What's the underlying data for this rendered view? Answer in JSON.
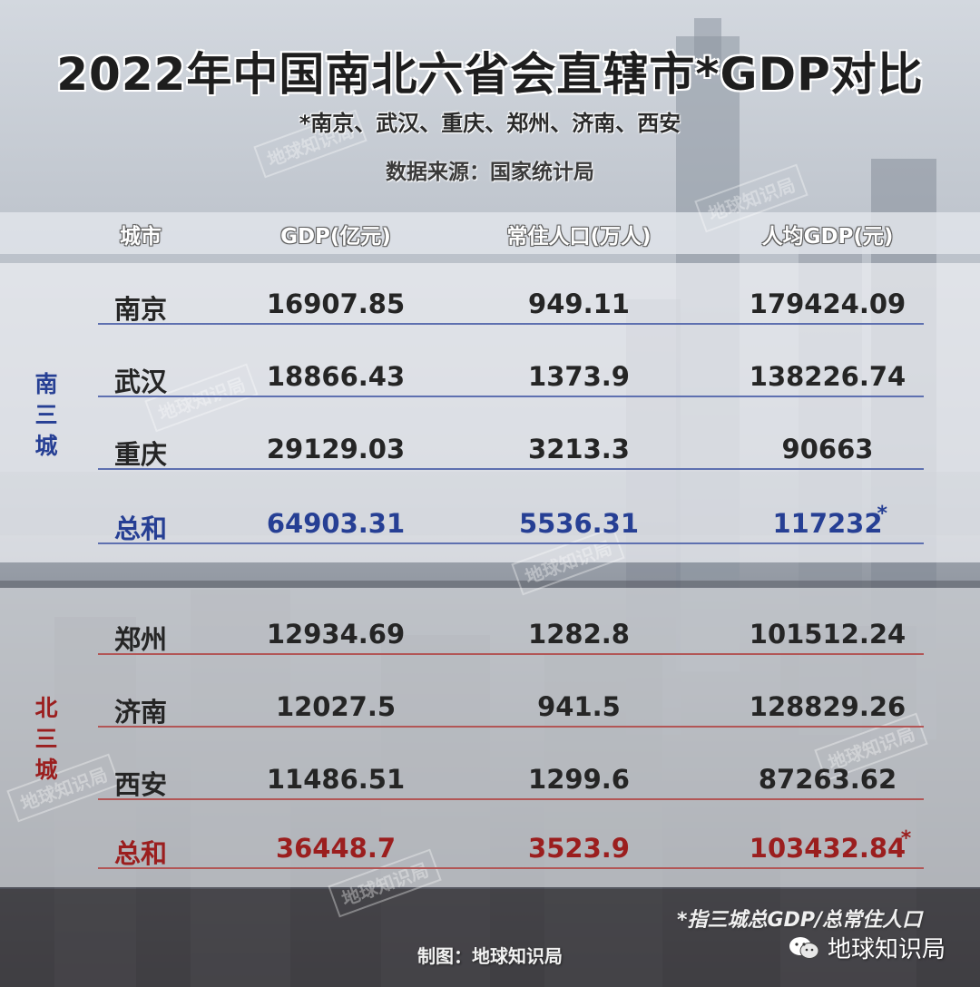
{
  "title": "2022年中国南北六省会直辖市*GDP对比",
  "subtitle": "*南京、武汉、重庆、郑州、济南、西安",
  "source": "数据来源：国家统计局",
  "watermark": "地球知识局",
  "note": "*指三城总GDP/总常住人口",
  "credit": "制图：地球知识局",
  "brand": "地球知识局",
  "colors": {
    "south_accent": "#263f94",
    "north_accent": "#9b1e1e"
  },
  "chart_data": {
    "type": "table",
    "columns": [
      "城市",
      "GDP(亿元)",
      "常住人口(万人)",
      "人均GDP(元)"
    ],
    "groups": [
      {
        "name": "南三城",
        "rows": [
          [
            "南京",
            "16907.85",
            "949.11",
            "179424.09"
          ],
          [
            "武汉",
            "18866.43",
            "1373.9",
            "138226.74"
          ],
          [
            "重庆",
            "29129.03",
            "3213.3",
            "90663"
          ]
        ],
        "total": [
          "总和",
          "64903.31",
          "5536.31",
          "117232"
        ],
        "total_mark": "*"
      },
      {
        "name": "北三城",
        "rows": [
          [
            "郑州",
            "12934.69",
            "1282.8",
            "101512.24"
          ],
          [
            "济南",
            "12027.5",
            "941.5",
            "128829.26"
          ],
          [
            "西安",
            "11486.51",
            "1299.6",
            "87263.62"
          ]
        ],
        "total": [
          "总和",
          "36448.7",
          "3523.9",
          "103432.84"
        ],
        "total_mark": "*"
      }
    ]
  }
}
